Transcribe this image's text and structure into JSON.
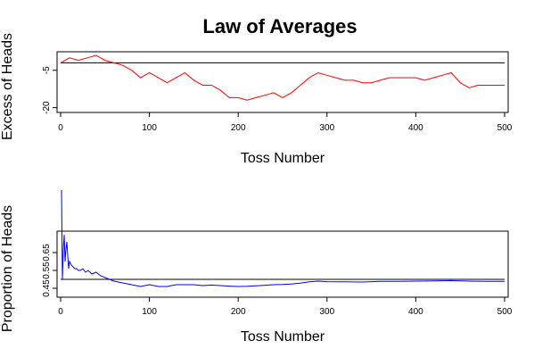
{
  "figure": {
    "title": "Law of Averages"
  },
  "chart_data": [
    {
      "type": "line",
      "xlabel": "Toss Number",
      "ylabel": "Excess of Heads",
      "xlim": [
        0,
        500
      ],
      "ylim": [
        -20.5,
        1
      ],
      "x_ticks": [
        0,
        100,
        200,
        300,
        400,
        500
      ],
      "y_ticks": [
        -5,
        -20
      ],
      "color": "#ff0000",
      "reference_line": {
        "y": -2,
        "color": "#000000"
      },
      "series": [
        {
          "x": [
            0,
            10,
            20,
            30,
            40,
            50,
            60,
            70,
            80,
            90,
            100,
            110,
            120,
            130,
            140,
            150,
            160,
            170,
            180,
            190,
            200,
            210,
            220,
            230,
            240,
            250,
            260,
            270,
            280,
            290,
            300,
            310,
            320,
            330,
            340,
            350,
            360,
            370,
            380,
            390,
            400,
            410,
            420,
            430,
            440,
            450,
            460,
            470,
            480,
            490,
            500
          ],
          "values": [
            -2,
            0,
            -1,
            0,
            1,
            -1,
            -2,
            -3,
            -5,
            -8,
            -6,
            -8,
            -10,
            -8,
            -6,
            -9,
            -11,
            -11,
            -13,
            -16,
            -16,
            -17,
            -16,
            -15,
            -14,
            -16,
            -14,
            -11,
            -8,
            -6,
            -7,
            -8,
            -9,
            -9,
            -10,
            -10,
            -9,
            -8,
            -8,
            -8,
            -8,
            -9,
            -8,
            -7,
            -6,
            -10,
            -12,
            -11,
            -11,
            -11,
            -11
          ]
        }
      ]
    },
    {
      "type": "line",
      "xlabel": "Toss Number",
      "ylabel": "Proportion of Heads",
      "xlim": [
        0,
        500
      ],
      "ylim": [
        0.42,
        0.75
      ],
      "x_ticks": [
        0,
        100,
        200,
        300,
        400,
        500
      ],
      "y_ticks": [
        0.45,
        0.55,
        0.65
      ],
      "color": "#0000ff",
      "reference_line": {
        "y": 0.5,
        "color": "#000000"
      },
      "series": [
        {
          "x": [
            1,
            2,
            3,
            4,
            5,
            6,
            7,
            8,
            9,
            10,
            12,
            14,
            16,
            18,
            20,
            22,
            25,
            28,
            31,
            35,
            40,
            45,
            50,
            60,
            70,
            80,
            90,
            100,
            110,
            120,
            130,
            140,
            150,
            160,
            170,
            180,
            190,
            200,
            210,
            220,
            230,
            240,
            250,
            260,
            270,
            280,
            290,
            300,
            320,
            340,
            360,
            380,
            400,
            420,
            440,
            460,
            480,
            500
          ],
          "values": [
            1.0,
            0.5,
            0.67,
            0.75,
            0.6,
            0.67,
            0.71,
            0.63,
            0.56,
            0.6,
            0.58,
            0.57,
            0.56,
            0.56,
            0.55,
            0.55,
            0.56,
            0.54,
            0.55,
            0.53,
            0.54,
            0.52,
            0.51,
            0.49,
            0.48,
            0.47,
            0.46,
            0.47,
            0.46,
            0.46,
            0.47,
            0.47,
            0.47,
            0.465,
            0.468,
            0.465,
            0.462,
            0.46,
            0.461,
            0.464,
            0.467,
            0.47,
            0.471,
            0.474,
            0.479,
            0.486,
            0.49,
            0.487,
            0.486,
            0.485,
            0.489,
            0.489,
            0.49,
            0.491,
            0.493,
            0.49,
            0.489,
            0.489
          ]
        }
      ]
    }
  ]
}
